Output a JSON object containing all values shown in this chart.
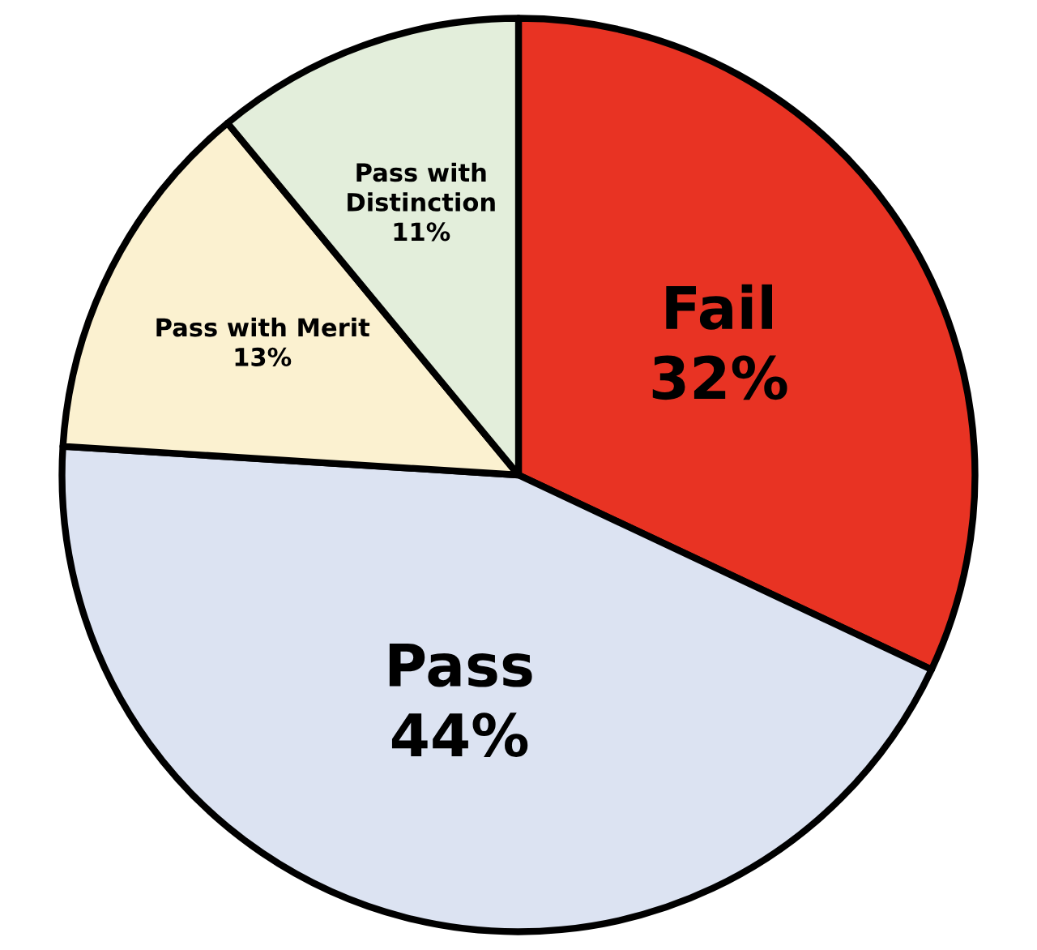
{
  "chart_data": {
    "type": "pie",
    "categories": [
      "Fail",
      "Pass",
      "Pass with Merit",
      "Pass with\nDistinction"
    ],
    "values": [
      32,
      44,
      13,
      11
    ],
    "value_labels": [
      "32%",
      "44%",
      "13%",
      "11%"
    ],
    "colors": [
      "#e83323",
      "#dce3f2",
      "#fbf1d0",
      "#e3eedb"
    ]
  }
}
